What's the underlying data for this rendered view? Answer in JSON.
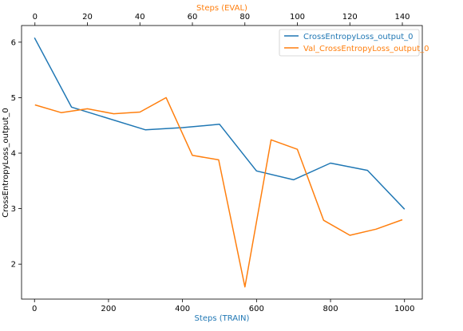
{
  "chart_data": {
    "type": "line",
    "xlabel": "Steps (TRAIN)",
    "x2label": "Steps (EVAL)",
    "ylabel": "CrossEntropyLoss_output_0",
    "xlim": [
      -35,
      1048
    ],
    "x2lim": [
      -5.1,
      147.6
    ],
    "ylim": [
      1.37,
      6.3
    ],
    "xticks": [
      0,
      200,
      400,
      600,
      800,
      1000
    ],
    "x2ticks": [
      0,
      20,
      40,
      60,
      80,
      100,
      120,
      140
    ],
    "yticks": [
      2,
      3,
      4,
      5,
      6
    ],
    "grid": false,
    "legend_position": "top-right",
    "series": [
      {
        "name": "CrossEntropyLoss_output_0",
        "axis": "bottom",
        "color": "#1f77b4",
        "x": [
          0,
          100,
          300,
          400,
          500,
          600,
          700,
          800,
          900,
          1000
        ],
        "y": [
          6.08,
          4.83,
          4.42,
          4.46,
          4.52,
          3.68,
          3.52,
          3.82,
          3.69,
          2.99
        ]
      },
      {
        "name": "Val_CrossEntropyLoss_output_0",
        "axis": "top",
        "color": "#ff7f0e",
        "x": [
          0,
          10,
          20,
          30,
          40,
          50,
          60,
          70,
          80,
          90,
          100,
          110,
          120,
          130,
          140
        ],
        "y": [
          4.87,
          4.73,
          4.8,
          4.71,
          4.74,
          5.0,
          3.96,
          3.88,
          1.59,
          4.24,
          4.07,
          2.79,
          2.52,
          2.63,
          2.8
        ]
      }
    ]
  }
}
